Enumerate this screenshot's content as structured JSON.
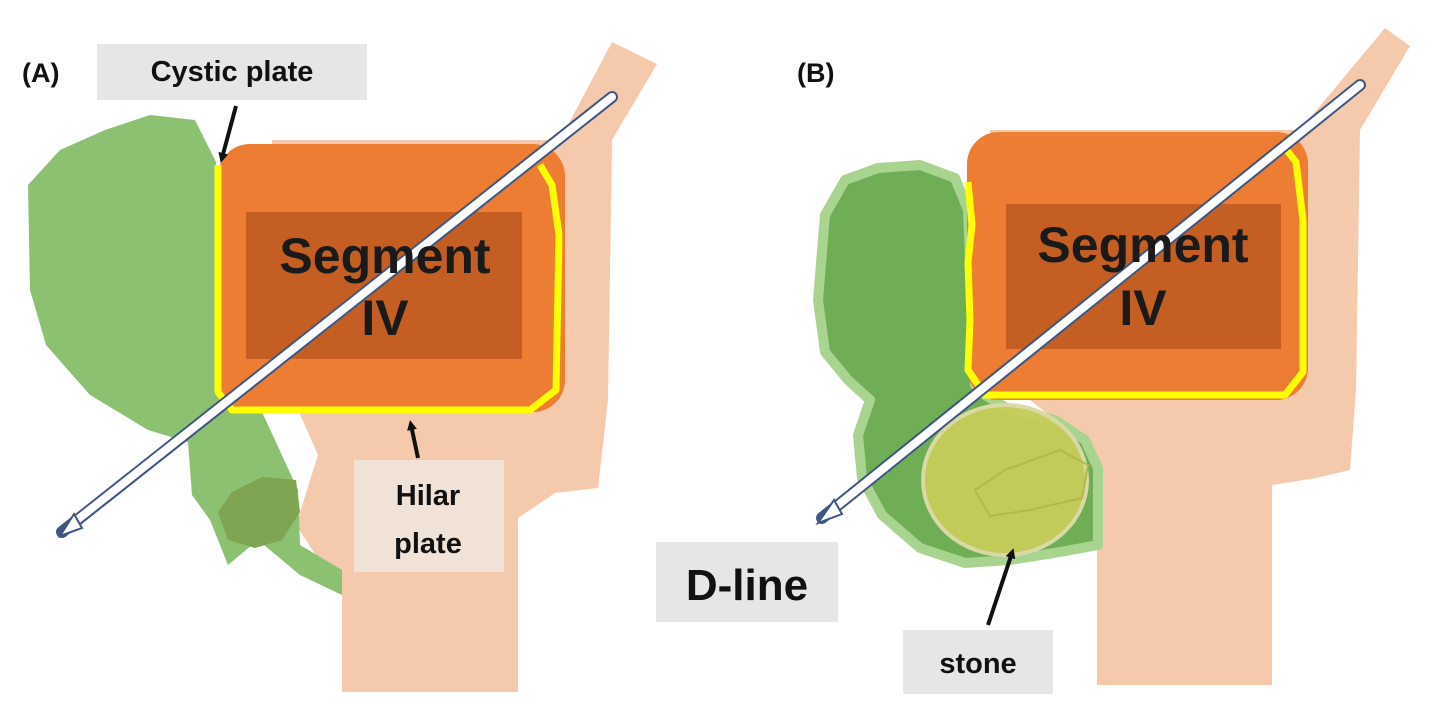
{
  "panel_a": {
    "panel_label": "(A)",
    "segment_line1": "Segment",
    "segment_line2": "IV",
    "cystic_plate_label": "Cystic plate",
    "hilar_plate_line1": "Hilar",
    "hilar_plate_line2": "plate"
  },
  "panel_b": {
    "panel_label": "(B)",
    "segment_line1": "Segment",
    "segment_line2": "IV",
    "dline_label": "D-line",
    "stone_label": "stone"
  },
  "colors": {
    "liver_tissue": "#f5c9ab",
    "segment_iv": "#ec7d32",
    "segment_inner": "#c45e23",
    "plate_outline": "#ffff00",
    "gallbladder": "#8cc171",
    "gallbladder_dark": "#6fae55",
    "stone": "#c9cc5a",
    "label_box": "#e6e6e6"
  }
}
